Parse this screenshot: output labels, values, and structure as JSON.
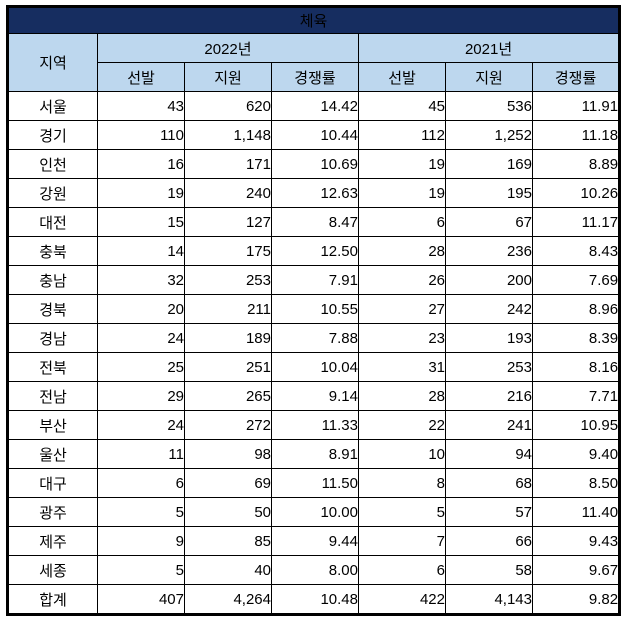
{
  "chart_data": {
    "type": "table",
    "title": "체육",
    "region_column_header": "지역",
    "year_groups": [
      {
        "label": "2022년",
        "sub_columns": [
          "선발",
          "지원",
          "경쟁률"
        ]
      },
      {
        "label": "2021년",
        "sub_columns": [
          "선발",
          "지원",
          "경쟁률"
        ]
      }
    ],
    "rows": [
      {
        "region": "서울",
        "values": [
          "43",
          "620",
          "14.42",
          "45",
          "536",
          "11.91"
        ],
        "is_total": false
      },
      {
        "region": "경기",
        "values": [
          "110",
          "1,148",
          "10.44",
          "112",
          "1,252",
          "11.18"
        ],
        "is_total": false
      },
      {
        "region": "인천",
        "values": [
          "16",
          "171",
          "10.69",
          "19",
          "169",
          "8.89"
        ],
        "is_total": false
      },
      {
        "region": "강원",
        "values": [
          "19",
          "240",
          "12.63",
          "19",
          "195",
          "10.26"
        ],
        "is_total": false
      },
      {
        "region": "대전",
        "values": [
          "15",
          "127",
          "8.47",
          "6",
          "67",
          "11.17"
        ],
        "is_total": false
      },
      {
        "region": "충북",
        "values": [
          "14",
          "175",
          "12.50",
          "28",
          "236",
          "8.43"
        ],
        "is_total": false
      },
      {
        "region": "충남",
        "values": [
          "32",
          "253",
          "7.91",
          "26",
          "200",
          "7.69"
        ],
        "is_total": false
      },
      {
        "region": "경북",
        "values": [
          "20",
          "211",
          "10.55",
          "27",
          "242",
          "8.96"
        ],
        "is_total": false
      },
      {
        "region": "경남",
        "values": [
          "24",
          "189",
          "7.88",
          "23",
          "193",
          "8.39"
        ],
        "is_total": false
      },
      {
        "region": "전북",
        "values": [
          "25",
          "251",
          "10.04",
          "31",
          "253",
          "8.16"
        ],
        "is_total": false
      },
      {
        "region": "전남",
        "values": [
          "29",
          "265",
          "9.14",
          "28",
          "216",
          "7.71"
        ],
        "is_total": false
      },
      {
        "region": "부산",
        "values": [
          "24",
          "272",
          "11.33",
          "22",
          "241",
          "10.95"
        ],
        "is_total": false
      },
      {
        "region": "울산",
        "values": [
          "11",
          "98",
          "8.91",
          "10",
          "94",
          "9.40"
        ],
        "is_total": false
      },
      {
        "region": "대구",
        "values": [
          "6",
          "69",
          "11.50",
          "8",
          "68",
          "8.50"
        ],
        "is_total": false
      },
      {
        "region": "광주",
        "values": [
          "5",
          "50",
          "10.00",
          "5",
          "57",
          "11.40"
        ],
        "is_total": false
      },
      {
        "region": "제주",
        "values": [
          "9",
          "85",
          "9.44",
          "7",
          "66",
          "9.43"
        ],
        "is_total": false
      },
      {
        "region": "세종",
        "values": [
          "5",
          "40",
          "8.00",
          "6",
          "58",
          "9.67"
        ],
        "is_total": false
      },
      {
        "region": "합계",
        "values": [
          "407",
          "4,264",
          "10.48",
          "422",
          "4,143",
          "9.82"
        ],
        "is_total": true
      }
    ]
  },
  "colors": {
    "title_bg": "#162d60",
    "title_text": "#ffffff",
    "header_bg": "#bdd7ee",
    "cell_bg": "#ffffff",
    "border": "#000000",
    "text": "#000000"
  }
}
